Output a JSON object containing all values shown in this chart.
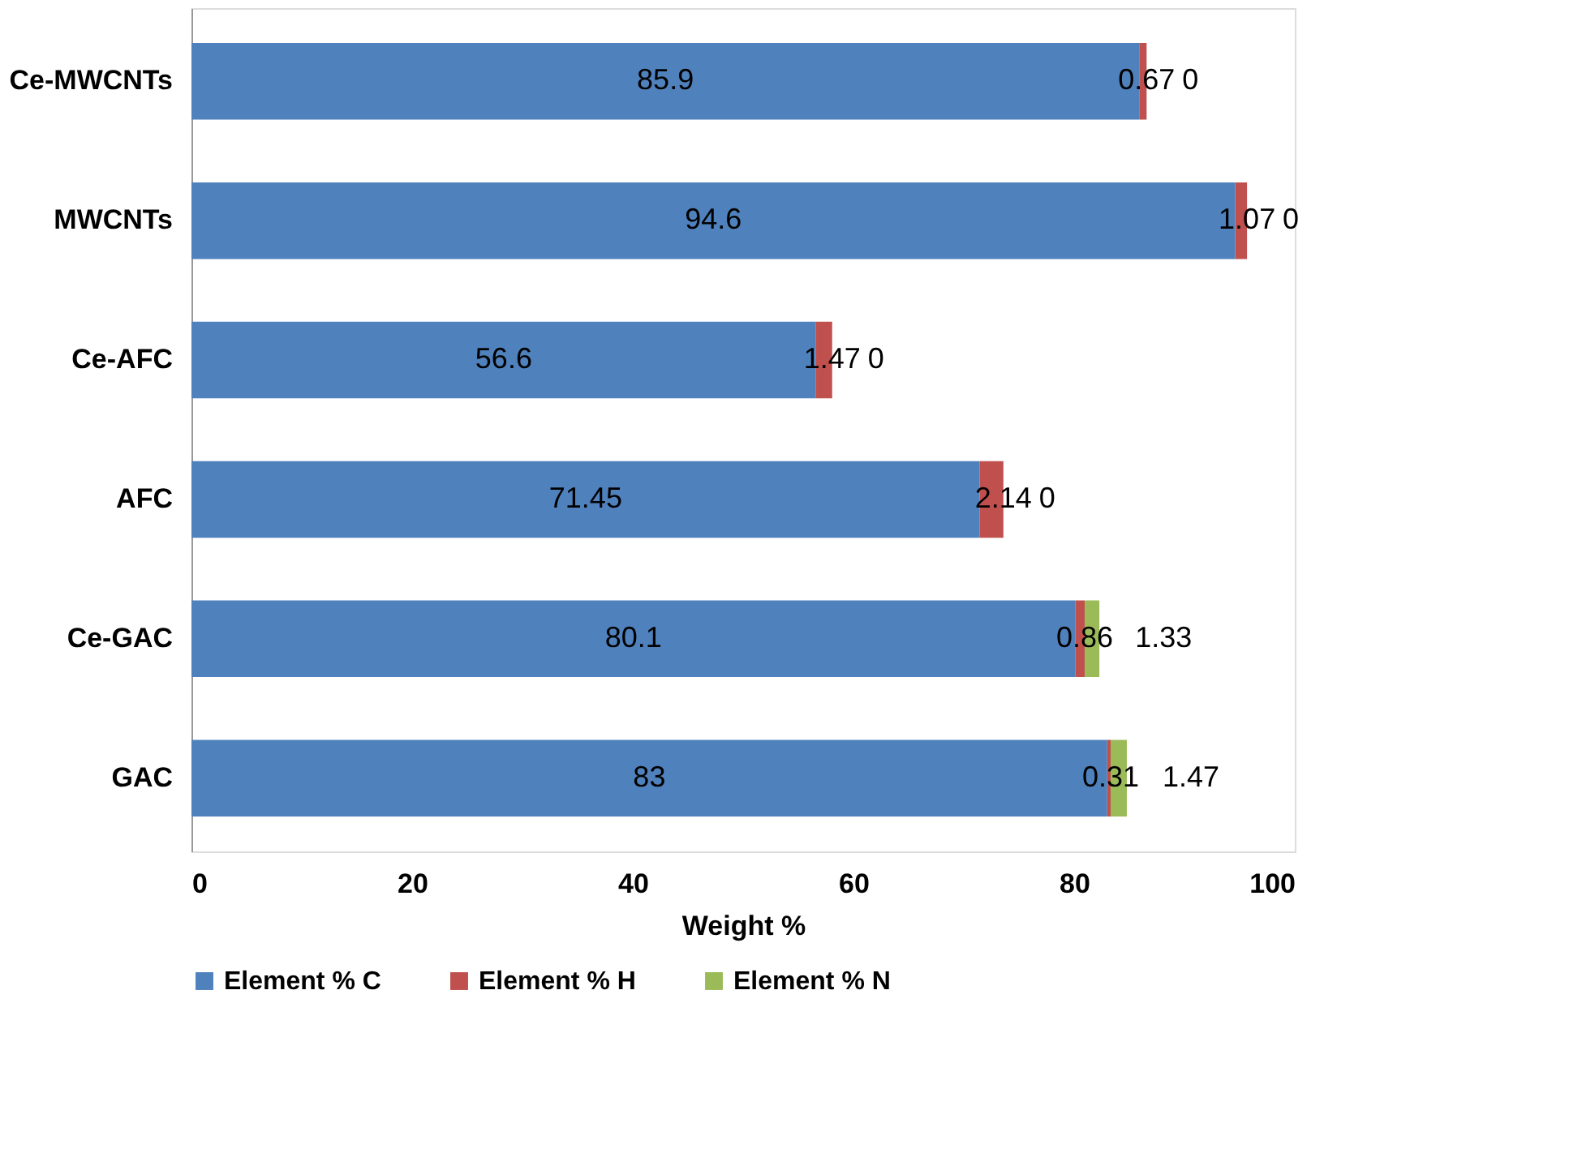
{
  "chart_data": {
    "type": "bar",
    "orientation": "horizontal",
    "stacked": true,
    "xlabel": "Weight %",
    "categories": [
      "Ce-MWCNTs",
      "MWCNTs",
      "Ce-AFC",
      "AFC",
      "Ce-GAC",
      "GAC"
    ],
    "series": [
      {
        "name": "Element % C",
        "color": "#4f81bd",
        "values": [
          85.9,
          94.6,
          56.6,
          71.45,
          80.1,
          83
        ]
      },
      {
        "name": "Element % H",
        "color": "#c0504d",
        "values": [
          0.67,
          1.07,
          1.47,
          2.14,
          0.86,
          0.31
        ]
      },
      {
        "name": "Element % N",
        "color": "#9bbb59",
        "values": [
          0,
          0,
          0,
          0,
          1.33,
          1.47
        ]
      }
    ],
    "xlim": [
      0,
      100
    ],
    "xticks": [
      0,
      20,
      40,
      60,
      80,
      100
    ],
    "grid": false,
    "legend": "bottom",
    "data_labels": true
  }
}
